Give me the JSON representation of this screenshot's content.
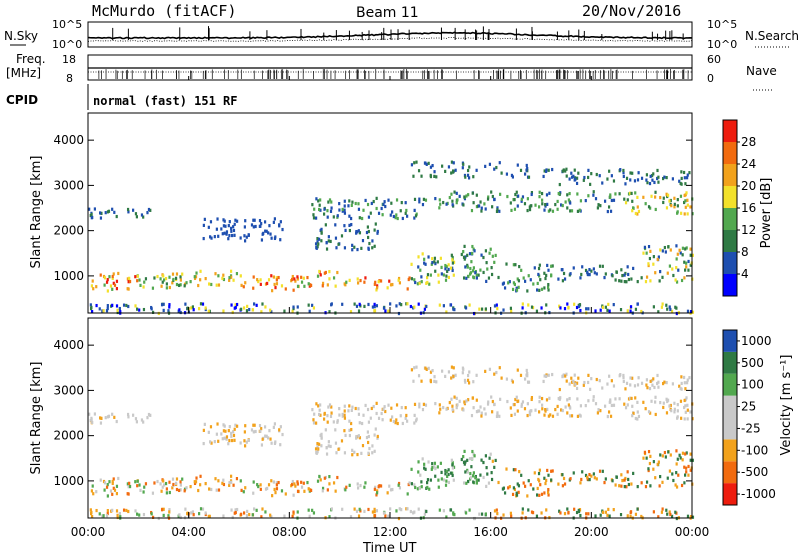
{
  "header": {
    "station": "McMurdo (fitACF)",
    "beam": "Beam 11",
    "date": "20/Nov/2016"
  },
  "noise_panel": {
    "left_label": "N.Sky",
    "right_label": "N.Search",
    "left_ticks": [
      "10^5",
      "10^0"
    ],
    "right_ticks": [
      "10^5",
      "10^0"
    ]
  },
  "freq_panel": {
    "left_label_1": "Freq.",
    "left_label_2": "[MHz]",
    "right_label": "Nave",
    "left_ticks": [
      "18",
      "8"
    ],
    "right_ticks": [
      "60",
      "0"
    ]
  },
  "cpid": {
    "label": "CPID",
    "value": "normal (fast) 151 RF"
  },
  "colors": {
    "power_scale": [
      "#0000ff",
      "#1e4fb0",
      "#2f7a44",
      "#52a84f",
      "#f3e12b",
      "#f2a21c",
      "#f26b0f",
      "#ee1c0e"
    ],
    "velocity_scale": [
      "#ee1c0e",
      "#f26b0f",
      "#f2a21c",
      "#c9c9c9",
      "#c9c9c9",
      "#52a84f",
      "#2f7a44",
      "#1e4fb0"
    ]
  },
  "chart_data": [
    {
      "type": "heatmap",
      "name": "power-panel",
      "ylabel": "Slant Range [km]",
      "yticks": [
        "1000",
        "2000",
        "3000",
        "4000"
      ],
      "ylim": [
        180,
        4600
      ],
      "xlim": [
        0,
        24
      ],
      "colorbar_title": "Power [dB]",
      "colorbar_ticks": [
        "4",
        "8",
        "12",
        "16",
        "20",
        "24",
        "28"
      ],
      "color_range": [
        0,
        32
      ]
    },
    {
      "type": "heatmap",
      "name": "velocity-panel",
      "ylabel": "Slant Range [km]",
      "yticks": [
        "1000",
        "2000",
        "3000",
        "4000"
      ],
      "ylim": [
        180,
        4600
      ],
      "xlim": [
        0,
        24
      ],
      "colorbar_title": "Velocity [m s⁻¹]",
      "colorbar_ticks": [
        "-1000",
        "-500",
        "-100",
        "-25",
        "25",
        "100",
        "500",
        "1000"
      ]
    }
  ],
  "xaxis": {
    "label": "Time UT",
    "ticks": [
      "00:00",
      "04:00",
      "08:00",
      "12:00",
      "16:00",
      "20:00",
      "00:00"
    ]
  }
}
